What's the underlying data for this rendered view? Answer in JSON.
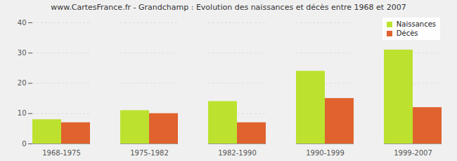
{
  "chart_data": {
    "type": "bar",
    "title": "www.CartesFrance.fr - Grandchamp : Evolution des naissances et décès entre 1968 et 2007",
    "categories": [
      "1968-1975",
      "1975-1982",
      "1982-1990",
      "1990-1999",
      "1999-2007"
    ],
    "series": [
      {
        "name": "Naissances",
        "color": "#bce22f",
        "values": [
          8,
          11,
          14,
          24,
          31
        ]
      },
      {
        "name": "Décès",
        "color": "#e0622e",
        "values": [
          7,
          10,
          7,
          15,
          12
        ]
      }
    ],
    "ylim": [
      0,
      40
    ],
    "yticks": [
      0,
      10,
      20,
      30,
      40
    ],
    "grid": true,
    "legend": "top-right"
  }
}
